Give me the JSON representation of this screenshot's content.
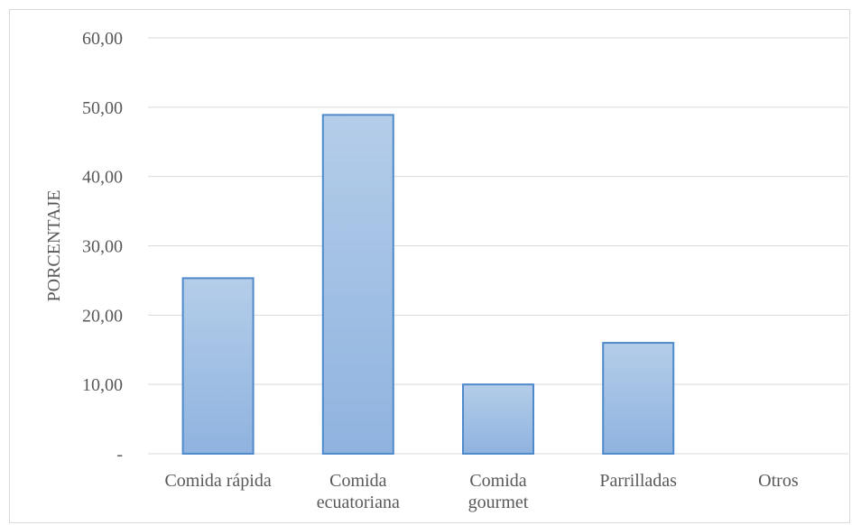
{
  "chart_data": {
    "type": "bar",
    "title": "",
    "xlabel": "",
    "ylabel": "PORCENTAJE",
    "categories": [
      [
        "Comida rápida"
      ],
      [
        "Comida",
        "ecuatoriana"
      ],
      [
        "Comida",
        "gourmet"
      ],
      [
        "Parrilladas"
      ],
      [
        "Otros"
      ]
    ],
    "values": [
      25.33,
      48.89,
      10.0,
      16.0,
      0.0
    ],
    "ylim": [
      0,
      60
    ],
    "yticks": [
      0,
      10,
      20,
      30,
      40,
      50,
      60
    ],
    "ytick_labels": [
      "-",
      "10,00",
      "20,00",
      "30,00",
      "40,00",
      "50,00",
      "60,00"
    ],
    "grid": true,
    "legend": "none",
    "colors": {
      "bar_top": "#b4cde9",
      "bar_bottom": "#8fb3df",
      "bar_border": "#4f8acb",
      "grid": "#d9d9d9",
      "text": "#595959"
    }
  }
}
